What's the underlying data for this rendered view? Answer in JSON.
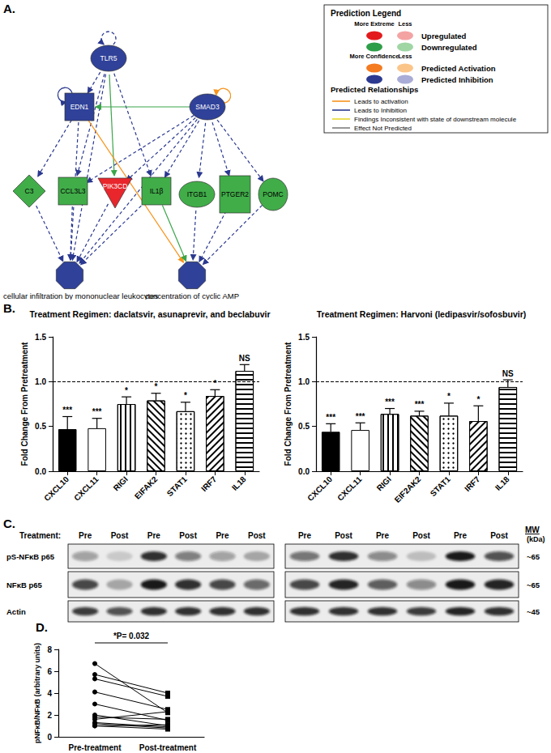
{
  "panel_labels": [
    "A.",
    "B.",
    "C.",
    "D."
  ],
  "network": {
    "nodes": [
      {
        "label": "TLR5",
        "shape": "ellipse",
        "color": "#2f4199"
      },
      {
        "label": "EDN1",
        "shape": "square",
        "color": "#2f4199"
      },
      {
        "label": "SMAD3",
        "shape": "ellipse",
        "color": "#2f4199"
      },
      {
        "label": "C3",
        "shape": "diamond",
        "color": "#41ad49"
      },
      {
        "label": "CCL3L3",
        "shape": "square",
        "color": "#41ad49"
      },
      {
        "label": "PIK3CD",
        "shape": "triangle",
        "color": "#e8262c"
      },
      {
        "label": "IL1β",
        "shape": "square",
        "color": "#41ad49"
      },
      {
        "label": "ITGB1",
        "shape": "ellipse",
        "color": "#41ad49"
      },
      {
        "label": "PTGER2",
        "shape": "rectangle",
        "color": "#41ad49"
      },
      {
        "label": "POMC",
        "shape": "circle",
        "color": "#41ad49"
      },
      {
        "label": "cellular infiltration by mononuclear leukocytes",
        "shape": "octagon",
        "color": "#2f4199"
      },
      {
        "label": "concentration of cyclic AMP",
        "shape": "octagon",
        "color": "#2f4199"
      }
    ],
    "edges": [
      {
        "from": 0,
        "to": 0,
        "color": "#2b3990",
        "line_style": "dashed"
      },
      {
        "from": 1,
        "to": 1,
        "color": "#2b3990",
        "line_style": "solid"
      },
      {
        "from": 2,
        "to": 2,
        "color": "#f7941d",
        "line_style": "solid"
      },
      {
        "from": 0,
        "to": 1,
        "color": "#2b3990",
        "line_style": "dashed"
      },
      {
        "from": 0,
        "to": 4,
        "color": "#2b3990",
        "line_style": "dashed"
      },
      {
        "from": 0,
        "to": 5,
        "color": "#3aa54a",
        "line_style": "solid"
      },
      {
        "from": 0,
        "to": 6,
        "color": "#2b3990",
        "line_style": "dashed"
      },
      {
        "from": 0,
        "to": 10,
        "color": "#2b3990",
        "line_style": "dashed"
      },
      {
        "from": 2,
        "to": 1,
        "color": "#3aa54a",
        "line_style": "solid"
      },
      {
        "from": 2,
        "to": 4,
        "color": "#2b3990",
        "line_style": "dashed"
      },
      {
        "from": 2,
        "to": 5,
        "color": "#2b3990",
        "line_style": "dashed"
      },
      {
        "from": 2,
        "to": 6,
        "color": "#2b3990",
        "line_style": "dashed"
      },
      {
        "from": 2,
        "to": 7,
        "color": "#2b3990",
        "line_style": "dashed"
      },
      {
        "from": 2,
        "to": 8,
        "color": "#2b3990",
        "line_style": "dashed"
      },
      {
        "from": 2,
        "to": 9,
        "color": "#2b3990",
        "line_style": "dashed"
      },
      {
        "from": 2,
        "to": 10,
        "color": "#2b3990",
        "line_style": "dashed"
      },
      {
        "from": 1,
        "to": 3,
        "color": "#2b3990",
        "line_style": "dashed"
      },
      {
        "from": 1,
        "to": 10,
        "color": "#2b3990",
        "line_style": "dashed"
      },
      {
        "from": 1,
        "to": 11,
        "color": "#f7941d",
        "line_style": "solid"
      },
      {
        "from": 3,
        "to": 10,
        "color": "#2b3990",
        "line_style": "dashed"
      },
      {
        "from": 4,
        "to": 10,
        "color": "#2b3990",
        "line_style": "dashed"
      },
      {
        "from": 5,
        "to": 10,
        "color": "#2b3990",
        "line_style": "dashed"
      },
      {
        "from": 6,
        "to": 10,
        "color": "#2b3990",
        "line_style": "dashed"
      },
      {
        "from": 6,
        "to": 11,
        "color": "#3aa54a",
        "line_style": "solid"
      },
      {
        "from": 7,
        "to": 11,
        "color": "#2b3990",
        "line_style": "dashed"
      },
      {
        "from": 8,
        "to": 11,
        "color": "#2b3990",
        "line_style": "dashed"
      },
      {
        "from": 9,
        "to": 11,
        "color": "#2b3990",
        "line_style": "dashed"
      }
    ]
  },
  "legend": {
    "title": "Prediction Legend",
    "scale_headers": [
      [
        "More Extreme",
        "Less"
      ],
      [
        "More Confidence",
        "Less"
      ]
    ],
    "states": [
      {
        "label": "Upregulated",
        "colors": [
          "#e31a1c",
          "#f4a3a3"
        ]
      },
      {
        "label": "Downregulated",
        "colors": [
          "#2e9e48",
          "#9fd6a4"
        ]
      },
      {
        "label": "Predicted Activation",
        "colors": [
          "#f47b20",
          "#fbc58a"
        ]
      },
      {
        "label": "Predicted Inhibition",
        "colors": [
          "#2b3990",
          "#a9acd6"
        ]
      }
    ],
    "relationships_title": "Predicted Relationships",
    "relationships": [
      {
        "label": "Leads to activation",
        "color": "#f7941d"
      },
      {
        "label": "Leads to Inhibition",
        "color": "#2b3990"
      },
      {
        "label": "Findings Inconsistent with state of downstream molecule",
        "color": "#e6d82e"
      },
      {
        "label": "Effect Not Predicted",
        "color": "#7f7f7f"
      }
    ]
  },
  "chart_data": [
    {
      "type": "bar",
      "title": "Treatment Regimen: daclatsvir, asunaprevir, and beclabuvir",
      "y_label": "Fold Change From Pretreatment",
      "categories": [
        "CXCL10",
        "CXCL11",
        "RIGI",
        "EIFAK2",
        "STAT1",
        "IRF7",
        "IL18"
      ],
      "values": [
        0.47,
        0.48,
        0.75,
        0.79,
        0.67,
        0.84,
        1.12
      ],
      "errors": [
        0.14,
        0.11,
        0.08,
        0.08,
        0.1,
        0.07,
        0.07
      ],
      "significance": [
        "***",
        "***",
        "*",
        "*",
        "*",
        "*",
        "NS"
      ],
      "colors": [
        "#000000",
        "#ffffff",
        "#ffffff",
        "#ffffff",
        "#ffffff",
        "#ffffff",
        "#ffffff"
      ],
      "reference_line": 1,
      "ylim": [
        0,
        1.5
      ],
      "yticks": [
        {
          "value": 0,
          "label": "0.0"
        },
        {
          "value": 0.5,
          "label": "0.5"
        },
        {
          "value": 1,
          "label": "1.0"
        },
        {
          "value": 1.5,
          "label": "1.5"
        }
      ]
    },
    {
      "type": "bar",
      "title": "Treatment Regimen: Harvoni (ledipasvir/sofosbuvir)",
      "y_label": "Fold Change From Pretreatment",
      "categories": [
        "CXCL10",
        "CXCL11",
        "RIGI",
        "EIF2AK2",
        "STAT1",
        "IRF7",
        "IL18"
      ],
      "values": [
        0.44,
        0.46,
        0.64,
        0.62,
        0.62,
        0.56,
        0.94
      ],
      "errors": [
        0.09,
        0.08,
        0.06,
        0.05,
        0.14,
        0.17,
        0.08
      ],
      "significance": [
        "***",
        "***",
        "***",
        "***",
        "*",
        "*",
        "NS"
      ],
      "colors": [
        "#000000",
        "#ffffff",
        "#ffffff",
        "#ffffff",
        "#ffffff",
        "#ffffff",
        "#ffffff"
      ],
      "reference_line": 1,
      "ylim": [
        0,
        1.5
      ],
      "yticks": [
        {
          "value": 0,
          "label": "0.0"
        },
        {
          "value": 0.5,
          "label": "0.5"
        },
        {
          "value": 1,
          "label": "1.0"
        },
        {
          "value": 1.5,
          "label": "1.5"
        }
      ]
    },
    {
      "type": "line",
      "y_label": "pNFκB/NFκB (arbitrary units)",
      "categories": [
        "Pre-treatment",
        "Post-treatment"
      ],
      "color": "#000000",
      "series": [
        {
          "values": [
            6.7,
            2.2
          ]
        },
        {
          "values": [
            5.7,
            4.0
          ]
        },
        {
          "values": [
            5.3,
            3.7
          ]
        },
        {
          "values": [
            4.1,
            2.5
          ]
        },
        {
          "values": [
            3.0,
            1.5
          ]
        },
        {
          "values": [
            2.0,
            1.0
          ]
        },
        {
          "values": [
            1.8,
            1.6
          ]
        },
        {
          "values": [
            1.6,
            2.3
          ]
        },
        {
          "values": [
            1.3,
            0.9
          ]
        },
        {
          "values": [
            1.2,
            0.8
          ]
        },
        {
          "values": [
            1.0,
            1.1
          ]
        },
        {
          "values": [
            1.0,
            0.7
          ]
        }
      ],
      "annotation": "*P= 0.032",
      "ylim": [
        0,
        8
      ],
      "yticks": [
        0,
        2,
        4,
        6,
        8
      ]
    }
  ],
  "blot": {
    "treatment_label": "Treatment:",
    "mw_label": "MW",
    "mw_unit": "(kDa)",
    "lanes": [
      [
        "Pre",
        "Post",
        "Pre",
        "Post",
        "Pre",
        "Post"
      ],
      [
        "Pre",
        "Post",
        "Pre",
        "Post",
        "Pre",
        "Post"
      ]
    ],
    "rows": [
      {
        "label": "pS-NFκB p65",
        "mw": "~65",
        "intensity": [
          [
            0.35,
            0.15,
            0.85,
            0.5,
            0.35,
            0.3
          ],
          [
            0.55,
            0.85,
            0.45,
            0.2,
            0.95,
            0.7
          ]
        ]
      },
      {
        "label": "NFκB p65",
        "mw": "~65",
        "intensity": [
          [
            0.75,
            0.3,
            0.95,
            0.85,
            0.75,
            0.6
          ],
          [
            0.75,
            0.9,
            0.65,
            0.45,
            0.95,
            0.9
          ]
        ]
      },
      {
        "label": "Actin",
        "mw": "~45",
        "intensity": [
          [
            0.8,
            0.7,
            0.85,
            0.85,
            0.85,
            0.85
          ],
          [
            0.85,
            0.85,
            0.85,
            0.8,
            0.9,
            0.85
          ]
        ]
      }
    ]
  }
}
